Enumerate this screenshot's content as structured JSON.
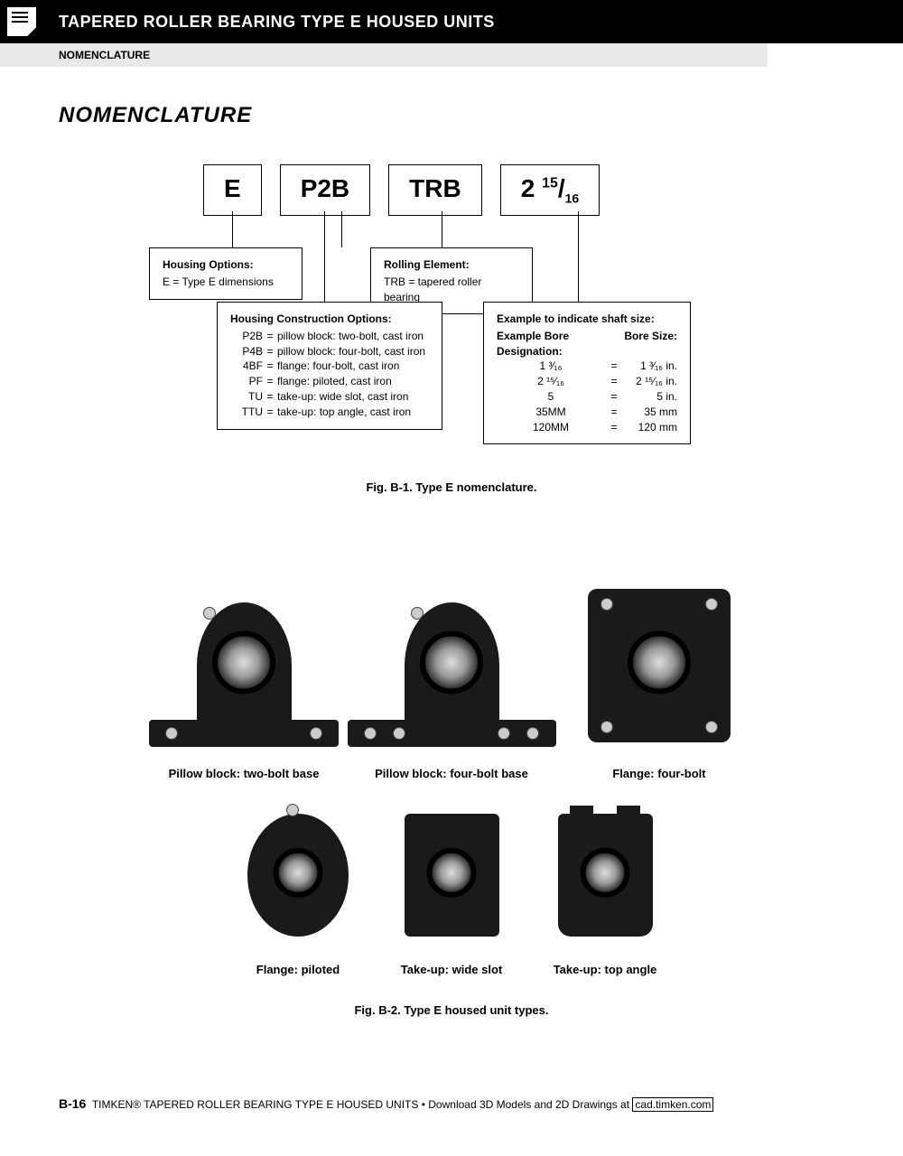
{
  "header": {
    "title": "TAPERED ROLLER BEARING TYPE E HOUSED UNITS",
    "subtitle": "NOMENCLATURE"
  },
  "section_title": "NOMENCLATURE",
  "codes": {
    "c1": "E",
    "c2": "P2B",
    "c3": "TRB",
    "c4_whole": "2",
    "c4_num": "15",
    "c4_den": "16"
  },
  "housing_options": {
    "title": "Housing Options:",
    "line": "E = Type E dimensions"
  },
  "rolling_element": {
    "title": "Rolling Element:",
    "line": "TRB = tapered roller bearing"
  },
  "construction": {
    "title": "Housing Construction Options:",
    "rows": [
      {
        "code": "P2B",
        "eq": "=",
        "desc": "pillow block: two-bolt, cast iron"
      },
      {
        "code": "P4B",
        "eq": "=",
        "desc": "pillow block: four-bolt, cast iron"
      },
      {
        "code": "4BF",
        "eq": "=",
        "desc": "flange: four-bolt, cast iron"
      },
      {
        "code": "PF",
        "eq": "=",
        "desc": "flange: piloted, cast iron"
      },
      {
        "code": "TU",
        "eq": "=",
        "desc": "take-up: wide slot, cast iron"
      },
      {
        "code": "TTU",
        "eq": "=",
        "desc": "take-up: top angle, cast iron"
      }
    ]
  },
  "shaft": {
    "title": "Example to indicate shaft size:",
    "col1": "Example Bore Designation:",
    "col2": "Bore Size:",
    "rows": [
      {
        "d": "1 ³⁄₁₆",
        "eq": "=",
        "s": "1 ³⁄₁₆ in."
      },
      {
        "d": "2 ¹⁵⁄₁₆",
        "eq": "=",
        "s": "2 ¹⁵⁄₁₆ in."
      },
      {
        "d": "5",
        "eq": "=",
        "s": "5 in."
      },
      {
        "d": "35MM",
        "eq": "=",
        "s": "35 mm"
      },
      {
        "d": "120MM",
        "eq": "=",
        "s": "120 mm"
      }
    ]
  },
  "fig1_caption": "Fig. B-1. Type E nomenclature.",
  "products_row1": [
    {
      "label": "Pillow block: two-bolt base"
    },
    {
      "label": "Pillow block: four-bolt base"
    },
    {
      "label": "Flange: four-bolt"
    }
  ],
  "products_row2": [
    {
      "label": "Flange: piloted"
    },
    {
      "label": "Take-up: wide slot"
    },
    {
      "label": "Take-up: top angle"
    }
  ],
  "fig2_caption": "Fig. B-2. Type E housed unit types.",
  "footer": {
    "page": "B-16",
    "text": "TIMKEN® TAPERED ROLLER BEARING TYPE E HOUSED UNITS • Download 3D Models and 2D Drawings at",
    "link": "cad.timken.com"
  },
  "colors": {
    "black": "#000000",
    "gray_banner": "#e8e8e8",
    "product_fill": "#1a1a1a",
    "bore_light": "#dddddd"
  }
}
